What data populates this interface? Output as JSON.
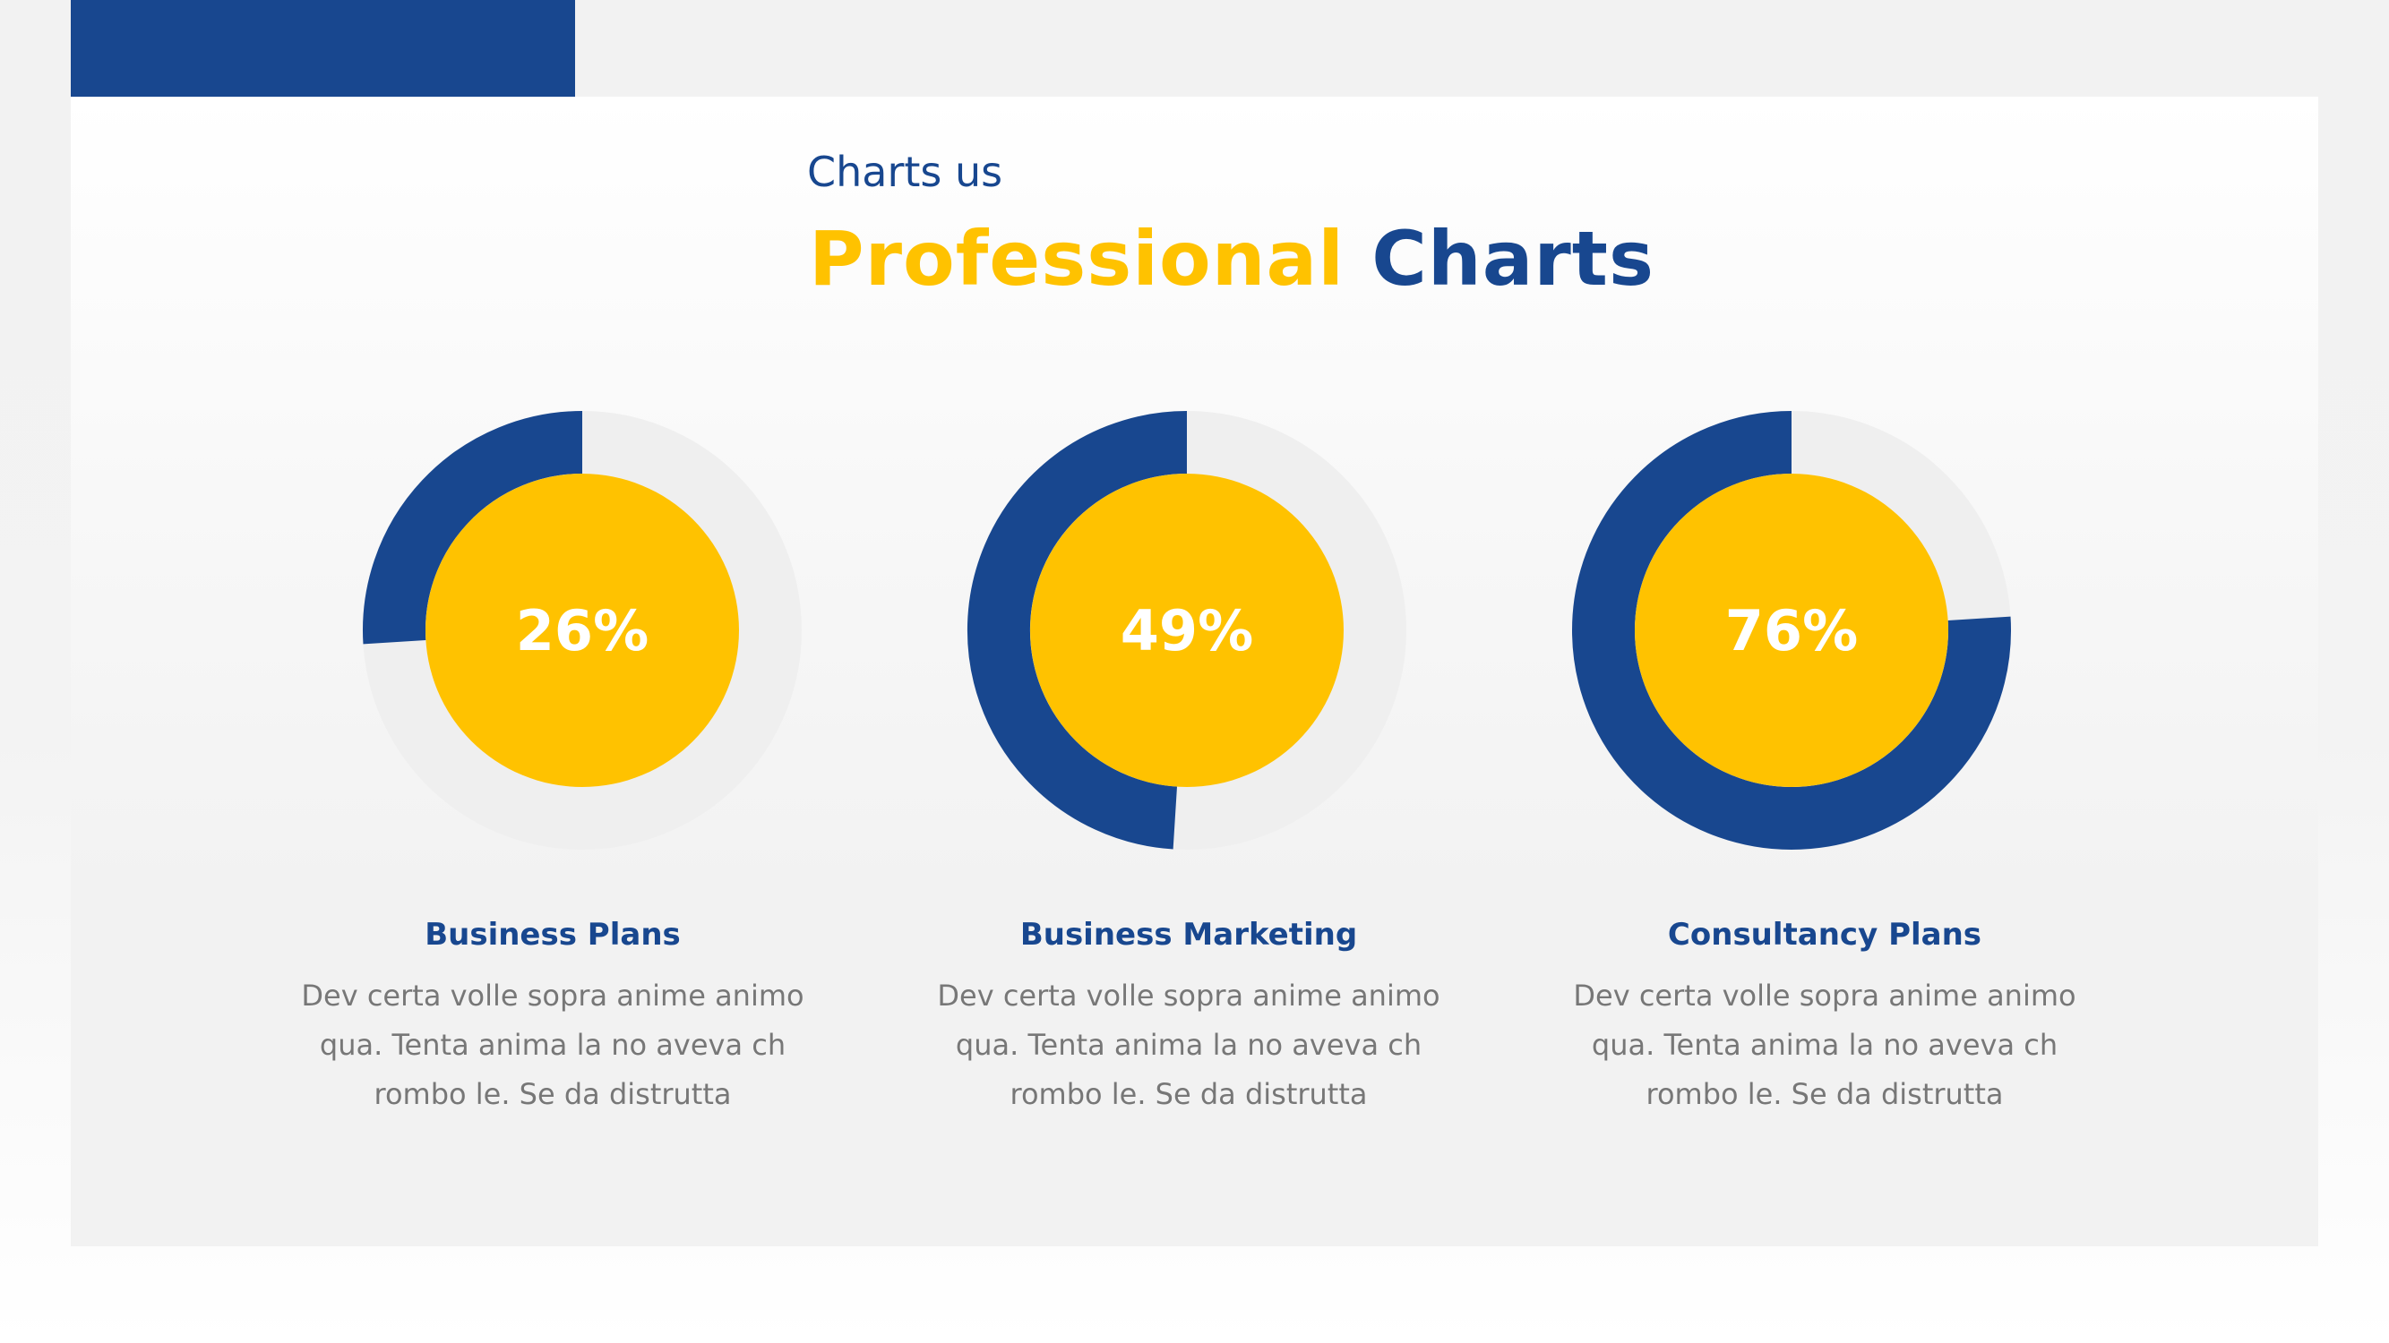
{
  "header": {
    "subtitle": "Charts us",
    "title_accent": "Professional",
    "title_main": "Charts"
  },
  "colors": {
    "primary": "#18478f",
    "accent": "#ffc200",
    "track": "#efefef",
    "text_muted": "#777777"
  },
  "chart_data": {
    "type": "donut",
    "items": [
      {
        "label": "26%",
        "value": 26,
        "title": "Business Plans",
        "description": [
          "Dev certa volle sopra anime animo",
          "qua. Tenta anima la no aveva ch",
          "rombo le. Se da distrutta"
        ]
      },
      {
        "label": "49%",
        "value": 49,
        "title": "Business Marketing",
        "description": [
          "Dev certa volle sopra anime animo",
          "qua. Tenta anima la no aveva ch",
          "rombo le. Se da distrutta"
        ]
      },
      {
        "label": "76%",
        "value": 76,
        "title": "Consultancy Plans",
        "description": [
          "Dev certa volle sopra anime animo",
          "qua. Tenta anima la no aveva ch",
          "rombo le. Se da distrutta"
        ]
      }
    ]
  }
}
